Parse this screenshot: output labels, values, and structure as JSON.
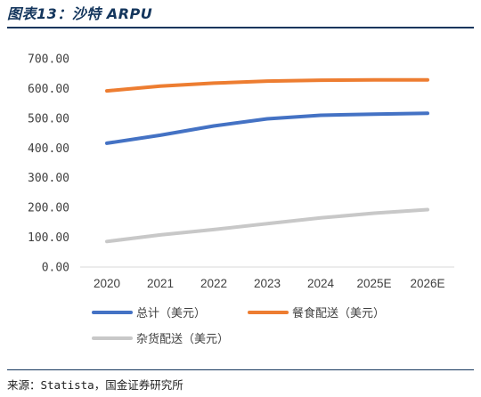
{
  "title": "图表13：沙特 ARPU",
  "source": "来源：Statista，国金证券研究所",
  "chart_data": {
    "type": "line",
    "title": "",
    "xlabel": "",
    "ylabel": "",
    "categories": [
      "2020",
      "2021",
      "2022",
      "2023",
      "2024",
      "2025E",
      "2026E"
    ],
    "ylim": [
      0,
      700
    ],
    "yticks": [
      "0.00",
      "100.00",
      "200.00",
      "300.00",
      "400.00",
      "500.00",
      "600.00",
      "700.00"
    ],
    "grid": false,
    "legend_position": "bottom",
    "series": [
      {
        "name": "总计（美元）",
        "color": "#4472c4",
        "values": [
          416,
          443,
          474,
          498,
          510,
          514,
          517
        ]
      },
      {
        "name": "餐食配送（美元）",
        "color": "#ed7d31",
        "values": [
          592,
          608,
          618,
          625,
          628,
          629,
          629
        ]
      },
      {
        "name": "杂货配送（美元）",
        "color": "#c8c8c8",
        "values": [
          86,
          108,
          126,
          146,
          165,
          181,
          193
        ]
      }
    ]
  }
}
